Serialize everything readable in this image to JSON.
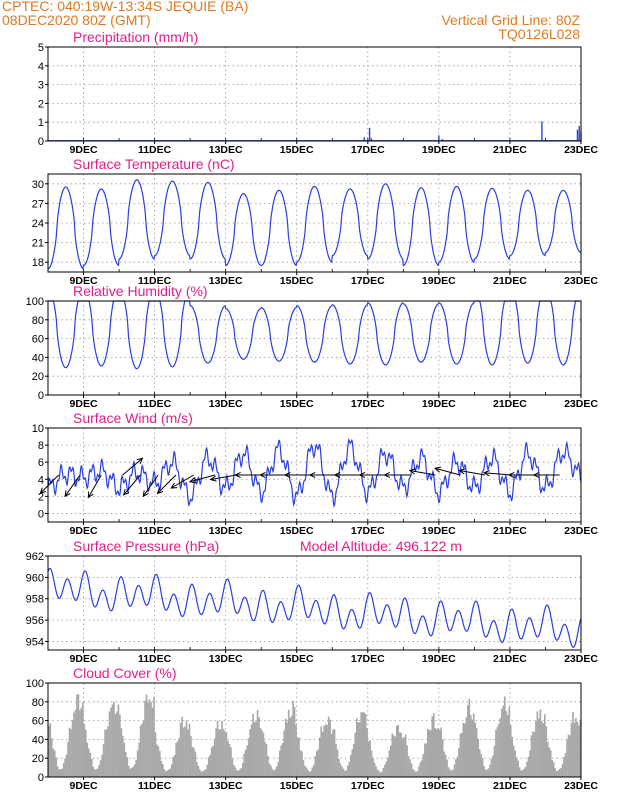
{
  "header": {
    "line1": "CPTEC:   040:19W-13:34S   JEQUIE (BA)",
    "line2": "08DEC2020 80Z (GMT)",
    "right1": "Vertical Grid Line: 80Z",
    "right2": "TQ0126L028"
  },
  "colors": {
    "header": "#e07a20",
    "title": "#e0208a",
    "series": "#2a3fe0",
    "cloud": "#a8a8a8",
    "arrow": "#000000"
  },
  "x_axis": {
    "start_day": 8,
    "end_day": 23,
    "tick_days": [
      9,
      11,
      13,
      15,
      17,
      19,
      21,
      23
    ],
    "tick_labels": [
      "9DEC",
      "11DEC",
      "13DEC",
      "15DEC",
      "17DEC",
      "19DEC",
      "21DEC",
      "23DEC"
    ]
  },
  "chart_data": [
    {
      "type": "bar",
      "title": "Precipitation (mm/h)",
      "ylim": [
        0,
        5
      ],
      "yticks": [
        0,
        1,
        2,
        3,
        4,
        5
      ],
      "grid": true,
      "x": [
        8.9,
        9.2,
        14.4,
        16.0,
        16.9,
        17.05,
        17.1,
        18.4,
        19.0,
        19.1,
        21.9,
        22.9,
        22.95,
        23.0
      ],
      "values": [
        0.04,
        0.03,
        0.03,
        0.05,
        0.2,
        0.7,
        0.15,
        0.05,
        0.3,
        0.1,
        1.05,
        0.6,
        0.8,
        0.5
      ]
    },
    {
      "type": "line",
      "title": "Surface Temperature (nC)",
      "ylim": [
        16.5,
        31.5
      ],
      "yticks": [
        18,
        21,
        24,
        27,
        30
      ],
      "grid": true,
      "daily_max": [
        29.5,
        29.2,
        30.6,
        30.4,
        30.2,
        28.5,
        29.0,
        29.6,
        29.2,
        30.0,
        29.4,
        29.6,
        29.3,
        29.0,
        29.0
      ],
      "daily_min": [
        17.0,
        17.5,
        18.5,
        19.0,
        18.5,
        17.5,
        17.5,
        18.0,
        19.0,
        18.5,
        17.5,
        18.0,
        18.5,
        19.0,
        19.5
      ]
    },
    {
      "type": "line",
      "title": "Relative Humidity (%)",
      "ylim": [
        0,
        100
      ],
      "yticks": [
        0,
        20,
        40,
        60,
        80,
        100
      ],
      "grid": true,
      "daily_max": [
        100,
        100,
        100,
        99,
        95,
        92,
        93,
        95,
        96,
        98,
        97,
        98,
        99,
        100,
        99
      ],
      "daily_min": [
        31,
        33,
        30,
        32,
        34,
        38,
        36,
        35,
        33,
        32,
        35,
        33,
        34,
        36,
        34
      ]
    },
    {
      "type": "line",
      "title": "Surface Wind (m/s)",
      "ylim": [
        -1,
        10
      ],
      "yticks": [
        0,
        2,
        4,
        6,
        8,
        10
      ],
      "grid": true,
      "speed_hours": [
        0,
        12,
        24,
        36,
        48,
        60,
        72,
        84,
        96,
        108,
        120,
        132,
        144,
        156,
        168,
        180,
        192,
        204,
        216,
        228,
        240,
        252,
        264,
        276,
        288,
        300,
        312,
        324,
        336,
        348,
        360
      ],
      "speed": [
        3.0,
        4.6,
        4.2,
        5.0,
        3.0,
        4.8,
        3.5,
        6.0,
        2.0,
        6.5,
        3.0,
        7.0,
        2.5,
        7.5,
        2.0,
        8.0,
        2.0,
        7.8,
        2.5,
        7.0,
        3.0,
        6.5,
        2.5,
        6.0,
        3.0,
        6.5,
        2.5,
        7.0,
        3.0,
        7.2,
        4.5
      ],
      "arrow_days": [
        8.3,
        8.9,
        9.5,
        10.1,
        10.6,
        11.1,
        11.6,
        12.1,
        12.7,
        13.3,
        14.0,
        14.7,
        15.4,
        16.1,
        16.8,
        17.5,
        18.2,
        18.9,
        19.6,
        20.3,
        21.0,
        21.7,
        22.4
      ],
      "arrow_dir_deg": [
        -135,
        -125,
        -120,
        40,
        -130,
        -125,
        -135,
        -150,
        -165,
        -170,
        180,
        180,
        180,
        180,
        180,
        180,
        180,
        170,
        165,
        170,
        175,
        180,
        180
      ]
    },
    {
      "type": "line",
      "title": "Surface Pressure (hPa)",
      "annotation": "Model Altitude: 496.122 m",
      "ylim": [
        953.2,
        962
      ],
      "yticks": [
        954,
        956,
        958,
        960,
        962
      ],
      "grid": true,
      "trend_start": 959.0,
      "trend_end": 955.0,
      "daily_amplitude": 2.4
    },
    {
      "type": "bar",
      "title": "Cloud Cover (%)",
      "ylim": [
        0,
        100
      ],
      "yticks": [
        0,
        20,
        40,
        60,
        80,
        100
      ],
      "grid": true,
      "daily_peak": [
        95,
        90,
        100,
        70,
        65,
        75,
        85,
        70,
        80,
        60,
        70,
        85,
        90,
        80,
        75
      ]
    }
  ]
}
